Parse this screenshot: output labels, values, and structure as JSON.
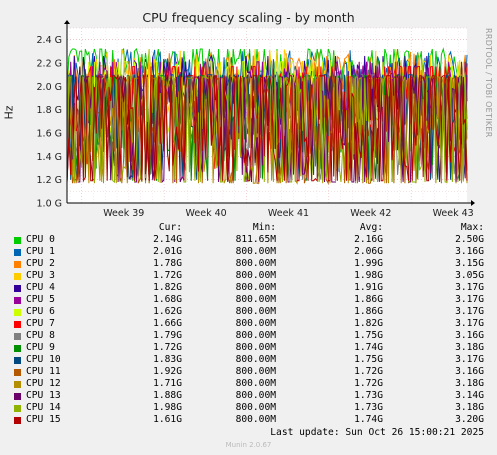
{
  "chart_data": {
    "type": "line",
    "title": "CPU frequency scaling - by month",
    "ylabel": "Hz",
    "side_label": "RRDTOOL / TOBI OETIKER",
    "ylim": [
      1.0,
      2.5
    ],
    "yticks": [
      "1.0 G",
      "1.2 G",
      "1.4 G",
      "1.6 G",
      "1.8 G",
      "2.0 G",
      "2.2 G",
      "2.4 G"
    ],
    "ytick_values": [
      1.0,
      1.2,
      1.4,
      1.6,
      1.8,
      2.0,
      2.2,
      2.4
    ],
    "xticks": [
      "Week 39",
      "Week 40",
      "Week 41",
      "Week 42",
      "Week 43"
    ],
    "grid": true,
    "columns": {
      "cur": "Cur:",
      "min": "Min:",
      "avg": "Avg:",
      "max": "Max:"
    },
    "series": [
      {
        "name": "CPU 0",
        "color": "#00cc00",
        "cur": "2.14G",
        "min": "811.65M",
        "avg": "2.16G",
        "max": "2.50G",
        "avg_num": 2.16,
        "max_num": 2.5,
        "min_num": 0.81
      },
      {
        "name": "CPU 1",
        "color": "#0066b3",
        "cur": "2.01G",
        "min": "800.00M",
        "avg": "2.06G",
        "max": "3.16G",
        "avg_num": 2.06,
        "max_num": 3.16,
        "min_num": 0.8
      },
      {
        "name": "CPU 2",
        "color": "#ff8000",
        "cur": "1.78G",
        "min": "800.00M",
        "avg": "1.99G",
        "max": "3.15G",
        "avg_num": 1.99,
        "max_num": 3.15,
        "min_num": 0.8
      },
      {
        "name": "CPU 3",
        "color": "#ffcc00",
        "cur": "1.72G",
        "min": "800.00M",
        "avg": "1.98G",
        "max": "3.05G",
        "avg_num": 1.98,
        "max_num": 3.05,
        "min_num": 0.8
      },
      {
        "name": "CPU 4",
        "color": "#330099",
        "cur": "1.82G",
        "min": "800.00M",
        "avg": "1.91G",
        "max": "3.17G",
        "avg_num": 1.91,
        "max_num": 3.17,
        "min_num": 0.8
      },
      {
        "name": "CPU 5",
        "color": "#990099",
        "cur": "1.68G",
        "min": "800.00M",
        "avg": "1.86G",
        "max": "3.17G",
        "avg_num": 1.86,
        "max_num": 3.17,
        "min_num": 0.8
      },
      {
        "name": "CPU 6",
        "color": "#ccff00",
        "cur": "1.62G",
        "min": "800.00M",
        "avg": "1.86G",
        "max": "3.17G",
        "avg_num": 1.86,
        "max_num": 3.17,
        "min_num": 0.8
      },
      {
        "name": "CPU 7",
        "color": "#ff0000",
        "cur": "1.66G",
        "min": "800.00M",
        "avg": "1.82G",
        "max": "3.17G",
        "avg_num": 1.82,
        "max_num": 3.17,
        "min_num": 0.8
      },
      {
        "name": "CPU 8",
        "color": "#808080",
        "cur": "1.79G",
        "min": "800.00M",
        "avg": "1.75G",
        "max": "3.16G",
        "avg_num": 1.75,
        "max_num": 3.16,
        "min_num": 0.8
      },
      {
        "name": "CPU 9",
        "color": "#008f00",
        "cur": "1.72G",
        "min": "800.00M",
        "avg": "1.74G",
        "max": "3.18G",
        "avg_num": 1.74,
        "max_num": 3.18,
        "min_num": 0.8
      },
      {
        "name": "CPU 10",
        "color": "#00487d",
        "cur": "1.83G",
        "min": "800.00M",
        "avg": "1.75G",
        "max": "3.17G",
        "avg_num": 1.75,
        "max_num": 3.17,
        "min_num": 0.8
      },
      {
        "name": "CPU 11",
        "color": "#b35a00",
        "cur": "1.92G",
        "min": "800.00M",
        "avg": "1.72G",
        "max": "3.16G",
        "avg_num": 1.72,
        "max_num": 3.16,
        "min_num": 0.8
      },
      {
        "name": "CPU 12",
        "color": "#b38f00",
        "cur": "1.71G",
        "min": "800.00M",
        "avg": "1.72G",
        "max": "3.18G",
        "avg_num": 1.72,
        "max_num": 3.18,
        "min_num": 0.8
      },
      {
        "name": "CPU 13",
        "color": "#6b006b",
        "cur": "1.88G",
        "min": "800.00M",
        "avg": "1.73G",
        "max": "3.14G",
        "avg_num": 1.73,
        "max_num": 3.14,
        "min_num": 0.8
      },
      {
        "name": "CPU 14",
        "color": "#8fb300",
        "cur": "1.98G",
        "min": "800.00M",
        "avg": "1.73G",
        "max": "3.18G",
        "avg_num": 1.73,
        "max_num": 3.18,
        "min_num": 0.8
      },
      {
        "name": "CPU 15",
        "color": "#b30000",
        "cur": "1.61G",
        "min": "800.00M",
        "avg": "1.74G",
        "max": "3.20G",
        "avg_num": 1.74,
        "max_num": 3.2,
        "min_num": 0.8
      }
    ],
    "last_update": "Last update: Sun Oct 26 15:00:21 2025",
    "footer": "Munin 2.0.67"
  }
}
